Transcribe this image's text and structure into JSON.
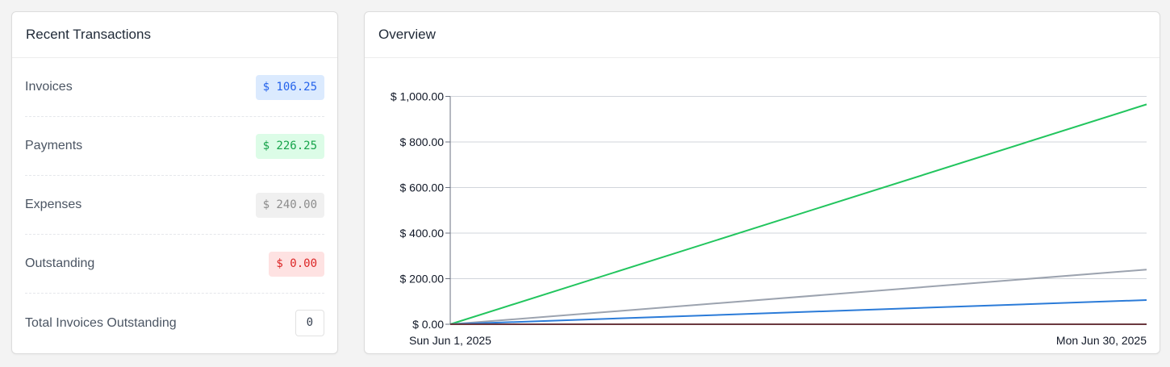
{
  "transactions": {
    "title": "Recent Transactions",
    "rows": [
      {
        "label": "Invoices",
        "value": "$ 106.25",
        "bg": "#dbeafe",
        "fg": "#2563eb"
      },
      {
        "label": "Payments",
        "value": "$ 226.25",
        "bg": "#dcfce7",
        "fg": "#16a34a"
      },
      {
        "label": "Expenses",
        "value": "$ 240.00",
        "bg": "#f0f0f0",
        "fg": "#8c8c8c"
      },
      {
        "label": "Outstanding",
        "value": "$ 0.00",
        "bg": "#fee2e2",
        "fg": "#dc2626"
      }
    ],
    "total_label": "Total Invoices Outstanding",
    "total_value": "0"
  },
  "overview": {
    "title": "Overview"
  },
  "chart_data": {
    "type": "line",
    "x": [
      "Sun Jun 1, 2025",
      "Mon Jun 30, 2025"
    ],
    "xticks": [
      "Sun Jun 1, 2025",
      "Mon Jun 30, 2025"
    ],
    "yticks": [
      "$ 0.00",
      "$ 200.00",
      "$ 400.00",
      "$ 600.00",
      "$ 800.00",
      "$ 1,000.00"
    ],
    "ytick_values": [
      0,
      200,
      400,
      600,
      800,
      1000
    ],
    "ylim": [
      0,
      1000
    ],
    "grid": true,
    "series": [
      {
        "color": "#22c55e",
        "values": [
          0,
          965
        ]
      },
      {
        "color": "#9ca3af",
        "values": [
          0,
          240
        ]
      },
      {
        "color": "#2b7bd8",
        "values": [
          0,
          106.25
        ]
      },
      {
        "color": "#8b1a1a",
        "values": [
          0,
          0
        ]
      }
    ]
  }
}
